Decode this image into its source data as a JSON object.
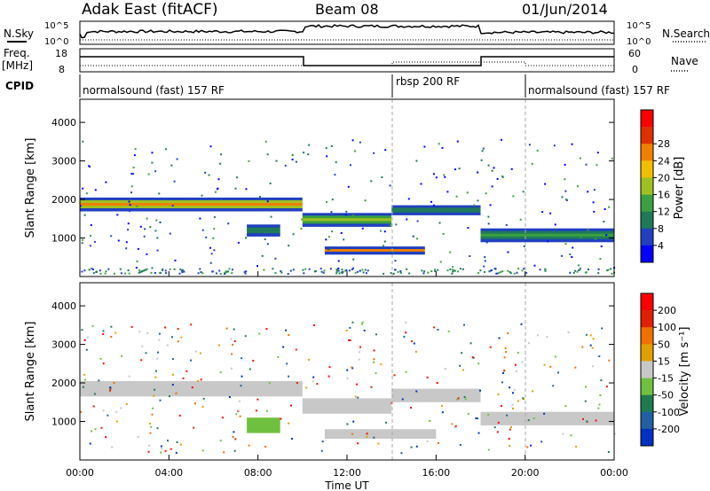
{
  "header": {
    "station": "Adak East (fitACF)",
    "beam": "Beam 08",
    "date": "01/Jun/2014"
  },
  "side_labels": {
    "nsky": "N.Sky",
    "nsearch": "N.Search",
    "freq": "Freq.",
    "freq_unit": "[MHz]",
    "nave": "Nave",
    "cpid": "CPID"
  },
  "cpid_segments": [
    {
      "label": "normalsound (fast) 157 RF",
      "start_hour": 0,
      "end_hour": 14
    },
    {
      "label": "rbsp 200 RF",
      "start_hour": 14,
      "end_hour": 20
    },
    {
      "label": "normalsound (fast) 157 RF",
      "start_hour": 20,
      "end_hour": 24
    }
  ],
  "noise_axis": {
    "left_ticks": [
      "10^5",
      "10^0"
    ],
    "right_ticks": [
      "10^5",
      "10^0"
    ]
  },
  "freq_axis": {
    "left_ticks": [
      "18",
      "8"
    ],
    "right_ticks": [
      "60",
      "0"
    ]
  },
  "chart_data": [
    {
      "type": "heatmap",
      "panel": "power",
      "xlabel": "",
      "ylabel": "Slant Range [km]",
      "xlim": [
        0,
        24
      ],
      "ylim": [
        0,
        4600
      ],
      "yticks": [
        1000,
        2000,
        3000,
        4000
      ],
      "colorbar": {
        "label": "Power [dB]",
        "ticks": [
          "4",
          "8",
          "12",
          "16",
          "20",
          "24",
          "28"
        ],
        "colors": [
          "#0000ff",
          "#2040c0",
          "#1f7a5a",
          "#3aa040",
          "#a0c020",
          "#f0c000",
          "#f08000",
          "#e03000",
          "#ff0000"
        ]
      },
      "bands": [
        {
          "t0": 0.0,
          "t1": 10.0,
          "r0": 1700,
          "r1": 2050,
          "cstart": 1,
          "cmid": 6
        },
        {
          "t0": 10.0,
          "t1": 14.0,
          "r0": 1300,
          "r1": 1650,
          "cstart": 1,
          "cmid": 4
        },
        {
          "t0": 14.0,
          "t1": 18.0,
          "r0": 1600,
          "r1": 1850,
          "cstart": 1,
          "cmid": 3
        },
        {
          "t0": 18.0,
          "t1": 24.0,
          "r0": 900,
          "r1": 1250,
          "cstart": 1,
          "cmid": 3
        },
        {
          "t0": 7.5,
          "t1": 9.0,
          "r0": 1050,
          "r1": 1350,
          "cstart": 1,
          "cmid": 3
        },
        {
          "t0": 11.0,
          "t1": 15.5,
          "r0": 580,
          "r1": 780,
          "cstart": 1,
          "cmid": 6
        }
      ]
    },
    {
      "type": "heatmap",
      "panel": "velocity",
      "xlabel": "Time UT",
      "ylabel": "Slant Range [km]",
      "xlim": [
        0,
        24
      ],
      "ylim": [
        0,
        4600
      ],
      "yticks": [
        1000,
        2000,
        3000,
        4000
      ],
      "xticks": [
        "00:00",
        "04:00",
        "08:00",
        "12:00",
        "16:00",
        "20:00",
        "00:00"
      ],
      "colorbar": {
        "label": "Velocity [m s⁻¹]",
        "ticks": [
          "200",
          "100",
          "50",
          "15",
          "-15",
          "-50",
          "-100",
          "-200"
        ],
        "colors": [
          "#0030c0",
          "#2060a0",
          "#1f7a50",
          "#70c040",
          "#c8c8c8",
          "#e0a000",
          "#f07000",
          "#e02000",
          "#ff0000"
        ]
      },
      "bands": [
        {
          "t0": 0.0,
          "t1": 10.0,
          "r0": 1650,
          "r1": 2050,
          "color": "#c8c8c8"
        },
        {
          "t0": 10.0,
          "t1": 14.0,
          "r0": 1200,
          "r1": 1600,
          "color": "#c8c8c8"
        },
        {
          "t0": 14.0,
          "t1": 18.0,
          "r0": 1500,
          "r1": 1850,
          "color": "#c8c8c8"
        },
        {
          "t0": 18.0,
          "t1": 24.0,
          "r0": 900,
          "r1": 1250,
          "color": "#c8c8c8"
        },
        {
          "t0": 7.5,
          "t1": 9.0,
          "r0": 700,
          "r1": 1100,
          "color": "#70c040"
        },
        {
          "t0": 11.0,
          "t1": 16.0,
          "r0": 550,
          "r1": 800,
          "color": "#c8c8c8"
        }
      ]
    }
  ]
}
